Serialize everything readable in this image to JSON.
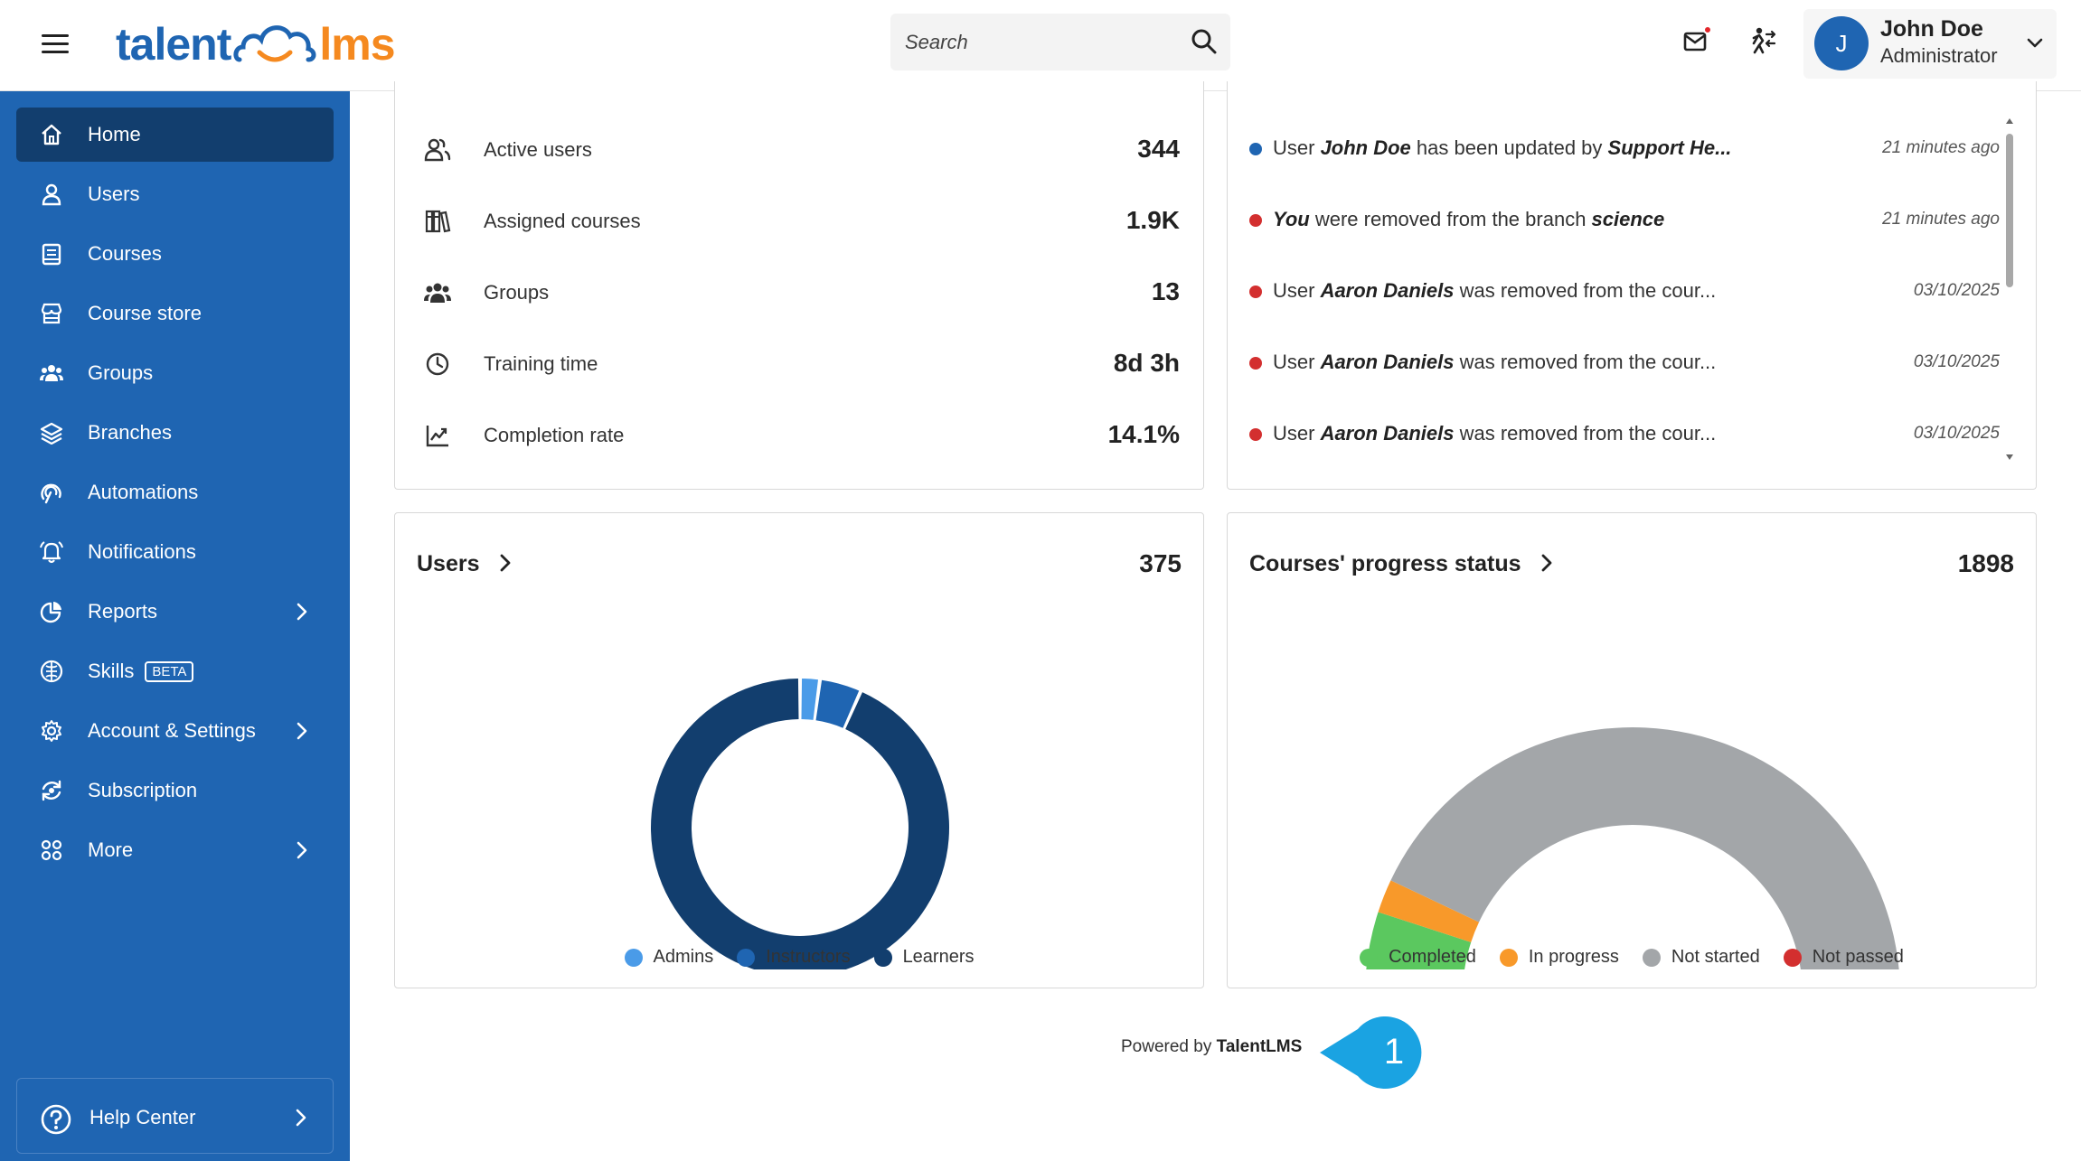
{
  "header": {
    "search_placeholder": "Search",
    "user_initial": "J",
    "user_name": "John Doe",
    "user_role": "Administrator"
  },
  "logo": {
    "part1": "talent",
    "part2": "lms"
  },
  "sidebar": {
    "items": [
      {
        "label": "Home"
      },
      {
        "label": "Users"
      },
      {
        "label": "Courses"
      },
      {
        "label": "Course store"
      },
      {
        "label": "Groups"
      },
      {
        "label": "Branches"
      },
      {
        "label": "Automations"
      },
      {
        "label": "Notifications"
      },
      {
        "label": "Reports"
      },
      {
        "label": "Skills",
        "badge": "BETA"
      },
      {
        "label": "Account & Settings"
      },
      {
        "label": "Subscription"
      },
      {
        "label": "More"
      }
    ],
    "help_label": "Help Center"
  },
  "stats": [
    {
      "label": "Active users",
      "value": "344"
    },
    {
      "label": "Assigned courses",
      "value": "1.9K"
    },
    {
      "label": "Groups",
      "value": "13"
    },
    {
      "label": "Training time",
      "value": "8d 3h"
    },
    {
      "label": "Completion rate",
      "value": "14.1%"
    }
  ],
  "activity": [
    {
      "pre": "User ",
      "b1": "John Doe",
      "mid": " has been updated by ",
      "b2": "Support He...",
      "post": "",
      "time": "21 minutes ago",
      "color": "#1f65b2"
    },
    {
      "pre": "",
      "b1": "You",
      "mid": " were removed from the branch ",
      "b2": "science",
      "post": "",
      "time": "21 minutes ago",
      "color": "#d32f2f"
    },
    {
      "pre": "User ",
      "b1": "Aaron Daniels",
      "mid": " was removed from the cour...",
      "b2": "",
      "post": "",
      "time": "03/10/2025",
      "color": "#d32f2f"
    },
    {
      "pre": "User ",
      "b1": "Aaron Daniels",
      "mid": " was removed from the cour...",
      "b2": "",
      "post": "",
      "time": "03/10/2025",
      "color": "#d32f2f"
    },
    {
      "pre": "User ",
      "b1": "Aaron Daniels",
      "mid": " was removed from the cour...",
      "b2": "",
      "post": "",
      "time": "03/10/2025",
      "color": "#d32f2f"
    }
  ],
  "users_card": {
    "title": "Users",
    "total": "375"
  },
  "progress_card": {
    "title": "Courses' progress status",
    "total": "1898"
  },
  "chart_data": [
    {
      "type": "pie",
      "title": "Users",
      "categories": [
        "Admins",
        "Instructors",
        "Learners"
      ],
      "values": [
        8,
        17,
        350
      ],
      "colors": [
        "#4a9be8",
        "#1f65b2",
        "#123e6e"
      ],
      "legend": "bottom"
    },
    {
      "type": "pie",
      "title": "Courses' progress status",
      "categories": [
        "Completed",
        "In progress",
        "Not started",
        "Not passed"
      ],
      "values": [
        190,
        77,
        1625,
        6
      ],
      "colors": [
        "#5bc85f",
        "#f8992a",
        "#a3a6a9",
        "#d32f2f"
      ],
      "legend": "bottom"
    }
  ],
  "footer": {
    "powered_prefix": "Powered by ",
    "powered_brand": "TalentLMS",
    "callout_number": "1"
  },
  "colors": {
    "brand_blue": "#1f65b2",
    "active_nav": "#123e6e",
    "brand_orange": "#f5891f"
  }
}
